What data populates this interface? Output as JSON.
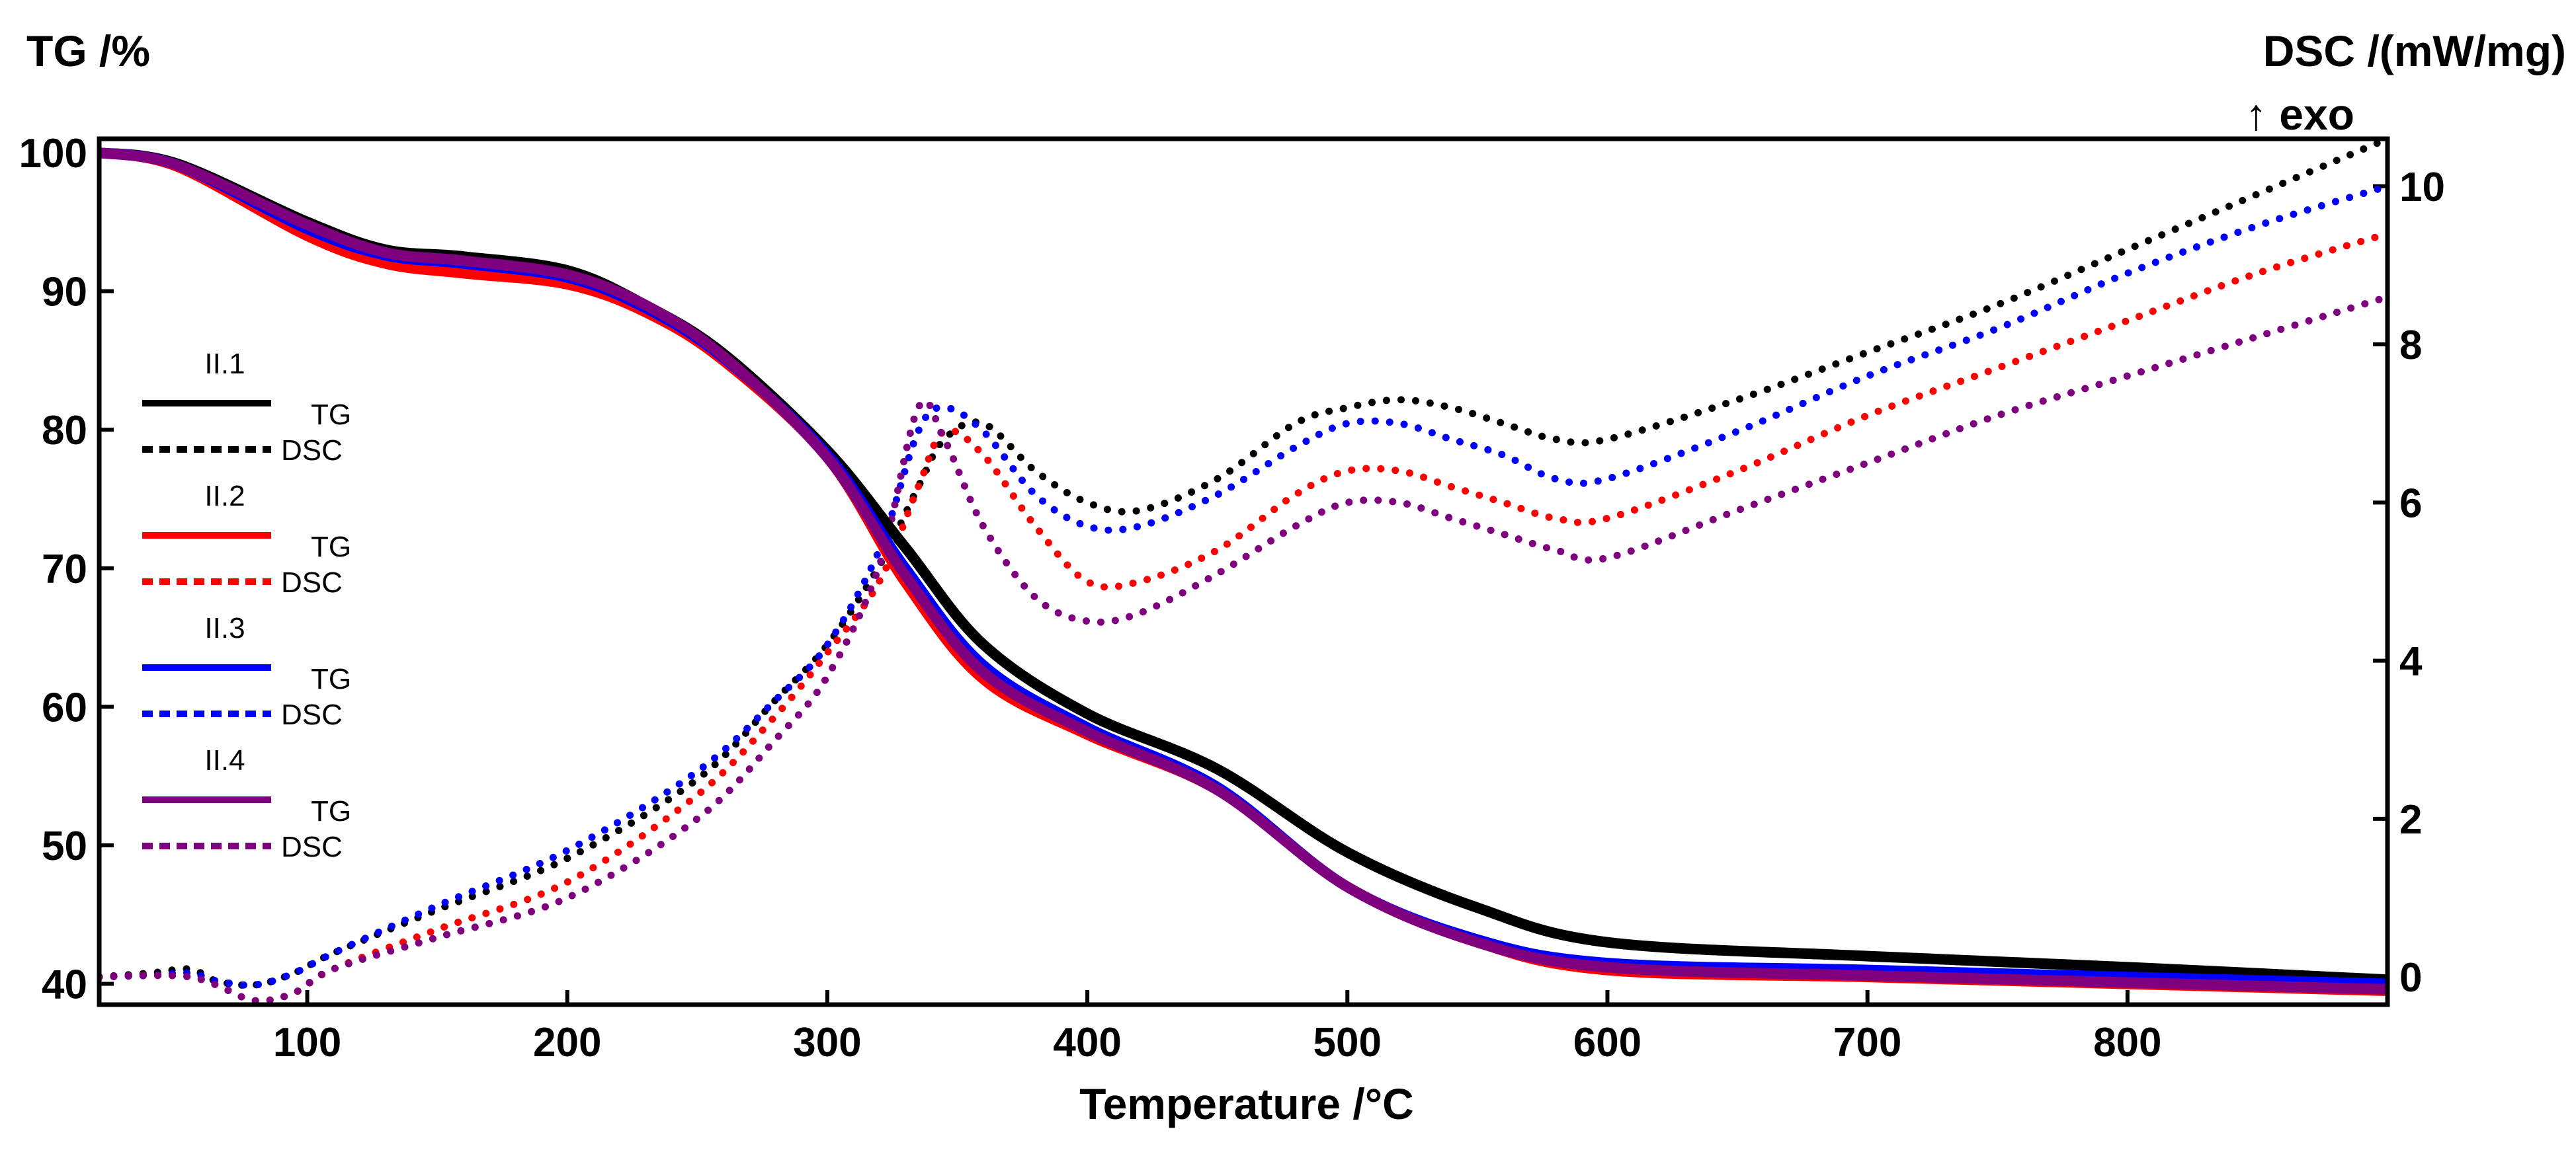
{
  "chart_data": {
    "type": "line",
    "title": "",
    "xlabel": "Temperature /°C",
    "ylabel_left": "TG /%",
    "ylabel_right": "DSC /(mW/mg)",
    "right_annotation": "↑ exo",
    "xlim": [
      20,
      900
    ],
    "ylim_left": [
      38.5,
      101
    ],
    "ylim_right": [
      -0.35,
      10.6
    ],
    "x_ticks": [
      100,
      200,
      300,
      400,
      500,
      600,
      700,
      800
    ],
    "x_tick_labels": [
      "100",
      "200",
      "300",
      "400",
      "500",
      "600",
      "700",
      "800"
    ],
    "left_ticks": [
      40,
      50,
      60,
      70,
      80,
      90,
      100
    ],
    "left_tick_labels": [
      "40",
      "50",
      "60",
      "70",
      "80",
      "90",
      "100"
    ],
    "right_ticks": [
      0,
      2,
      4,
      6,
      8,
      10
    ],
    "right_tick_labels": [
      "0",
      "2",
      "4",
      "6",
      "8",
      "10"
    ],
    "legend_placement": "left",
    "series": [
      {
        "name": "II.1",
        "color": "#000000",
        "tg_label": "TG",
        "dsc_label": "DSC",
        "tg": {
          "x": [
            20,
            50,
            100,
            130,
            160,
            200,
            230,
            260,
            300,
            330,
            360,
            400,
            450,
            500,
            550,
            600,
            700,
            800,
            900
          ],
          "y": [
            100,
            99.2,
            95.0,
            93.0,
            92.5,
            91.5,
            89.0,
            85.5,
            78.5,
            71.5,
            64.5,
            59.5,
            55.5,
            49.5,
            45.5,
            43.0,
            42.0,
            41.2,
            40.3
          ]
        },
        "dsc": {
          "x": [
            20,
            40,
            55,
            65,
            80,
            95,
            110,
            150,
            200,
            250,
            280,
            300,
            320,
            335,
            345,
            360,
            380,
            400,
            420,
            450,
            480,
            500,
            520,
            540,
            560,
            580,
            600,
            650,
            700,
            750,
            800,
            850,
            900
          ],
          "y": [
            0,
            0.05,
            0.1,
            -0.05,
            -0.1,
            0.05,
            0.3,
            0.85,
            1.5,
            2.5,
            3.5,
            4.2,
            5.2,
            6.2,
            6.8,
            7.0,
            6.4,
            6.0,
            5.9,
            6.3,
            7.0,
            7.2,
            7.3,
            7.2,
            7.0,
            6.8,
            6.8,
            7.3,
            7.9,
            8.5,
            9.2,
            9.9,
            10.6
          ]
        }
      },
      {
        "name": "II.2",
        "color": "#ff0000",
        "tg_label": "TG",
        "dsc_label": "DSC",
        "tg": {
          "x": [
            20,
            50,
            100,
            130,
            160,
            200,
            230,
            260,
            300,
            330,
            360,
            400,
            450,
            500,
            550,
            600,
            700,
            800,
            900
          ],
          "y": [
            100,
            99.0,
            94.0,
            92.0,
            91.3,
            90.5,
            88.5,
            85.0,
            78.0,
            69.0,
            62.0,
            58.0,
            54.0,
            47.0,
            43.0,
            41.0,
            40.5,
            40.0,
            39.5
          ]
        },
        "dsc": {
          "x": [
            20,
            40,
            55,
            65,
            80,
            95,
            110,
            150,
            200,
            250,
            280,
            300,
            320,
            335,
            345,
            360,
            380,
            400,
            420,
            450,
            480,
            500,
            520,
            540,
            560,
            580,
            600,
            650,
            700,
            750,
            800,
            850,
            900
          ],
          "y": [
            0,
            0.02,
            0,
            -0.1,
            -0.3,
            -0.2,
            0.1,
            0.6,
            1.2,
            2.3,
            3.3,
            4.1,
            5.0,
            6.2,
            6.9,
            6.6,
            5.7,
            5.0,
            5.0,
            5.4,
            6.1,
            6.4,
            6.4,
            6.2,
            6.0,
            5.8,
            5.8,
            6.4,
            7.1,
            7.7,
            8.3,
            8.9,
            9.4
          ]
        }
      },
      {
        "name": "II.3",
        "color": "#0000ff",
        "tg_label": "TG",
        "dsc_label": "DSC",
        "tg": {
          "x": [
            20,
            50,
            100,
            130,
            160,
            200,
            230,
            260,
            300,
            330,
            360,
            400,
            450,
            500,
            550,
            600,
            700,
            800,
            900
          ],
          "y": [
            100,
            99.1,
            94.5,
            92.6,
            92.0,
            91.0,
            88.8,
            85.2,
            78.2,
            70.0,
            63.0,
            58.5,
            54.2,
            47.0,
            43.2,
            41.5,
            41.0,
            40.5,
            40.0
          ]
        },
        "dsc": {
          "x": [
            20,
            40,
            55,
            65,
            80,
            95,
            110,
            150,
            200,
            250,
            280,
            300,
            320,
            335,
            345,
            360,
            380,
            400,
            420,
            450,
            480,
            500,
            520,
            540,
            560,
            580,
            600,
            650,
            700,
            750,
            800,
            850,
            900
          ],
          "y": [
            0,
            0.02,
            0.05,
            -0.05,
            -0.1,
            0.05,
            0.3,
            0.9,
            1.6,
            2.6,
            3.5,
            4.2,
            5.4,
            6.9,
            7.2,
            6.9,
            6.1,
            5.7,
            5.7,
            6.1,
            6.7,
            7.0,
            7.0,
            6.8,
            6.6,
            6.3,
            6.3,
            6.9,
            7.6,
            8.2,
            8.9,
            9.5,
            10.0
          ]
        }
      },
      {
        "name": "II.4",
        "color": "#7f007f",
        "tg_label": "TG",
        "dsc_label": "DSC",
        "tg": {
          "x": [
            20,
            50,
            100,
            130,
            160,
            200,
            230,
            260,
            300,
            330,
            360,
            400,
            450,
            500,
            550,
            600,
            700,
            800,
            900
          ],
          "y": [
            100,
            99.1,
            94.8,
            92.8,
            92.2,
            91.2,
            89.0,
            85.3,
            78.0,
            69.5,
            62.5,
            58.2,
            54.0,
            47.0,
            43.0,
            41.2,
            40.6,
            40.1,
            39.6
          ]
        },
        "dsc": {
          "x": [
            20,
            40,
            55,
            65,
            80,
            95,
            110,
            150,
            200,
            250,
            280,
            300,
            320,
            335,
            345,
            360,
            380,
            400,
            420,
            450,
            480,
            500,
            520,
            540,
            560,
            580,
            600,
            650,
            700,
            750,
            800,
            850,
            900
          ],
          "y": [
            0,
            0.02,
            0,
            -0.1,
            -0.3,
            -0.2,
            0.1,
            0.5,
            1.0,
            2.0,
            3.0,
            3.8,
            5.2,
            7.2,
            6.8,
            5.7,
            4.8,
            4.5,
            4.6,
            5.1,
            5.7,
            6.0,
            6.0,
            5.8,
            5.6,
            5.4,
            5.3,
            5.9,
            6.5,
            7.1,
            7.6,
            8.1,
            8.6
          ]
        }
      }
    ]
  }
}
